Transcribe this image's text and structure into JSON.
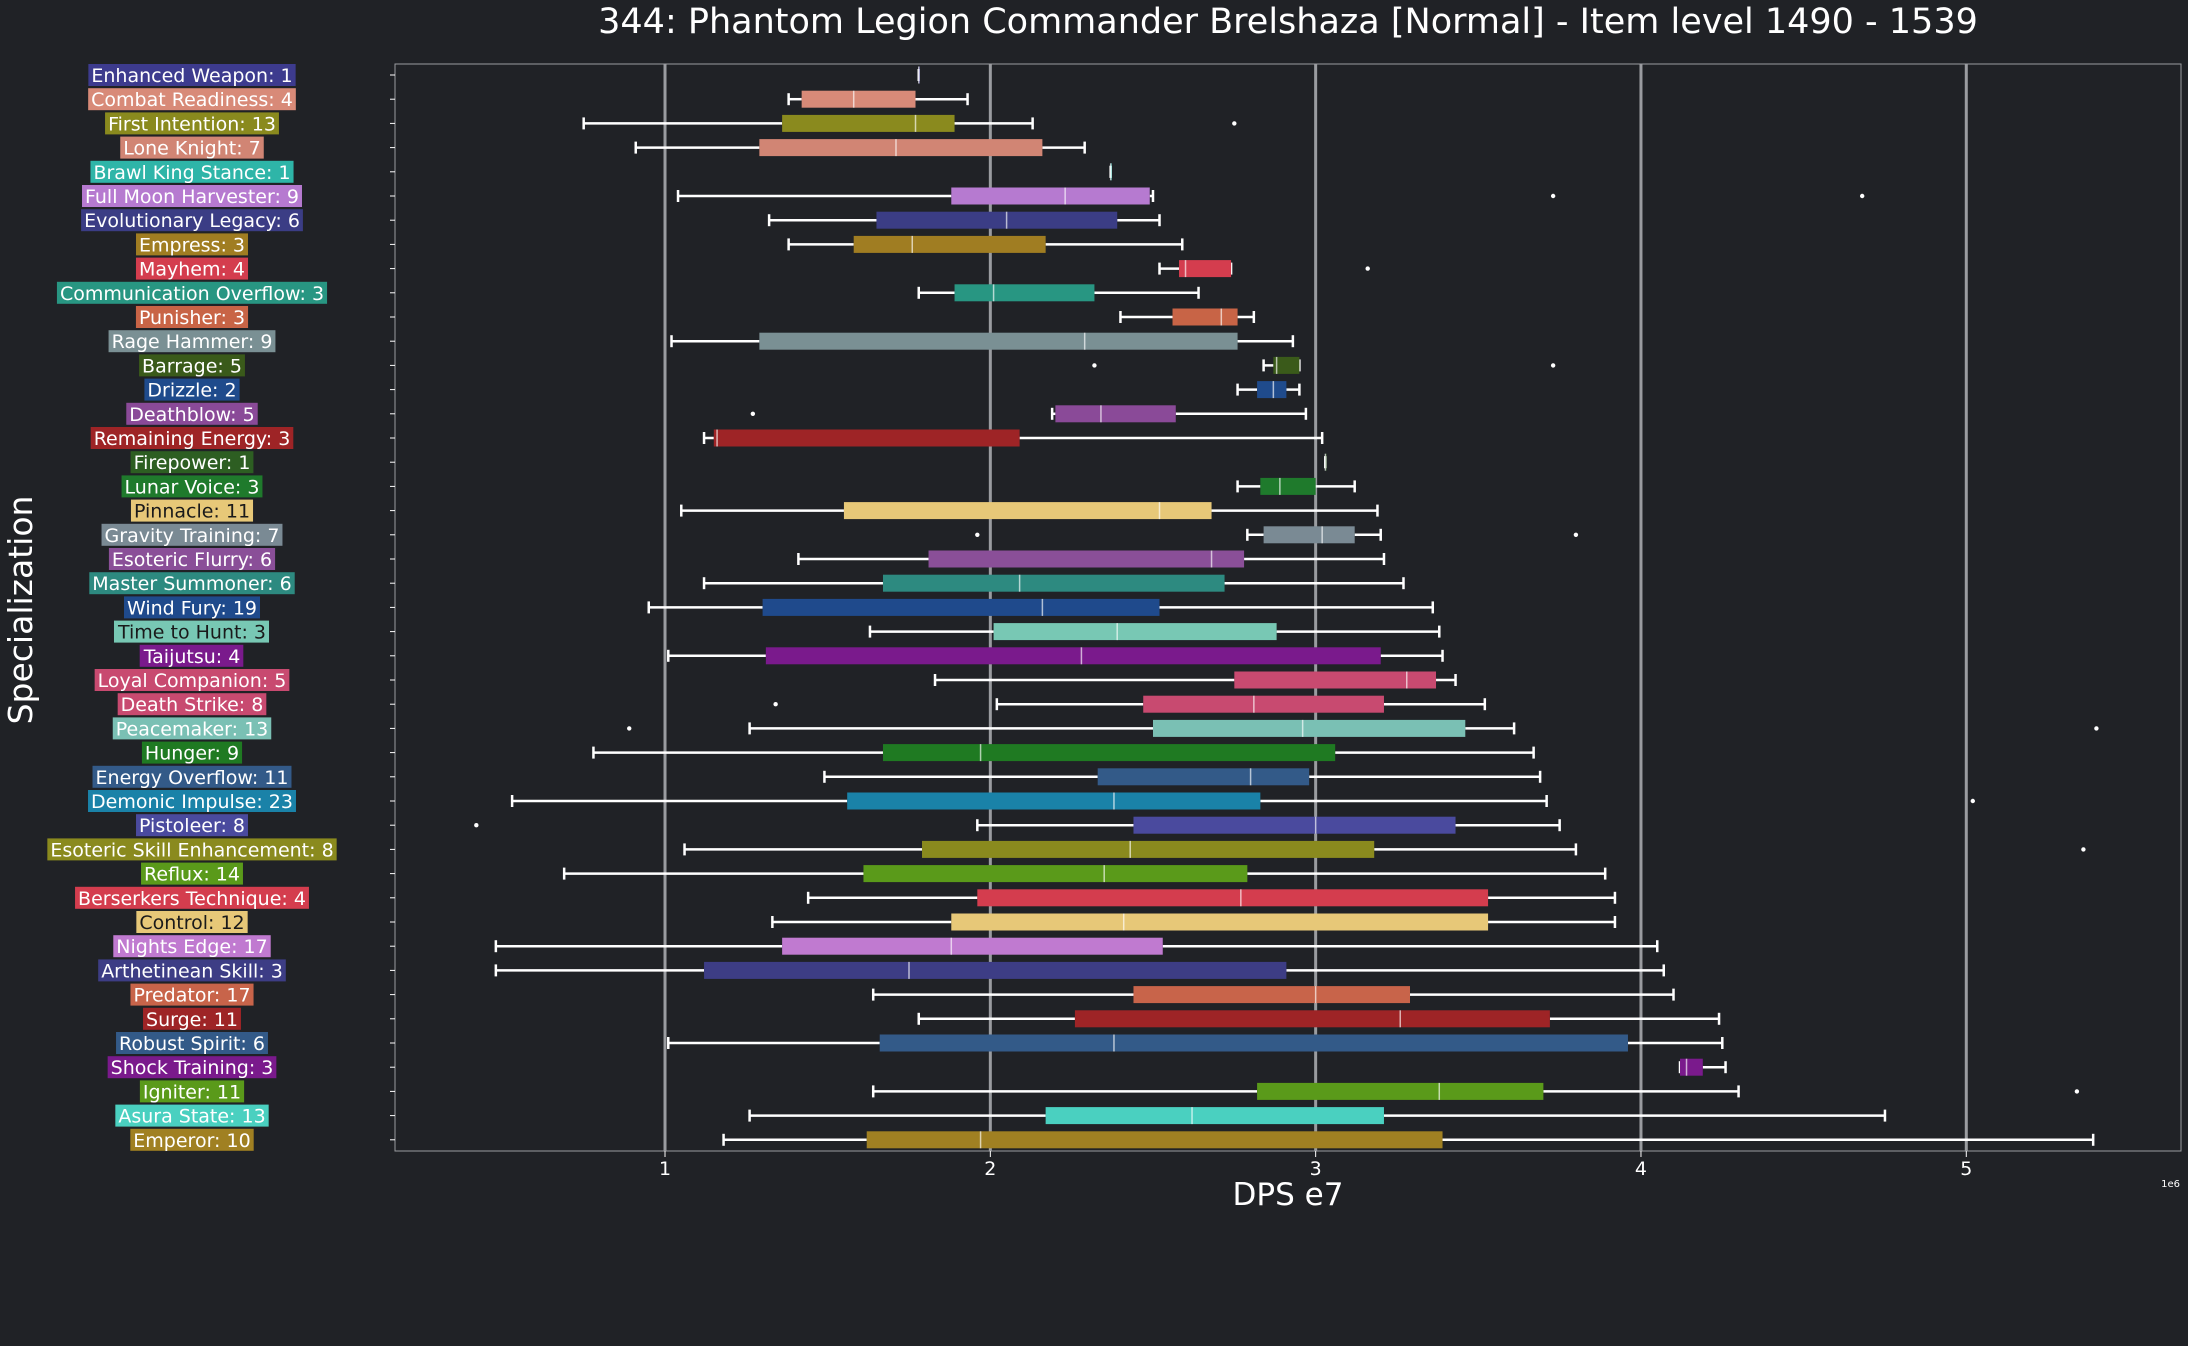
{
  "chart_data": {
    "type": "box",
    "orientation": "horizontal",
    "title": "344: Phantom Legion Commander Brelshaza [Normal] - Item level 1490 - 1539",
    "xlabel": "DPS e7",
    "ylabel": "Specialization",
    "x_offset_label": "1e6",
    "xlim": [
      1.17,
      6.66
    ],
    "xticks": [
      2,
      3,
      4,
      5,
      6
    ],
    "xtick_labels": [
      "1",
      "2",
      "3",
      "4",
      "5"
    ],
    "grid": "vertical lines at major ticks",
    "series": [
      {
        "label": "Enhanced Weapon: 1",
        "color": "#3d3b8e",
        "whislo": 2.78,
        "q1": 2.78,
        "med": 2.78,
        "q3": 2.78,
        "whishi": 2.78,
        "fliers": []
      },
      {
        "label": "Combat Readiness: 4",
        "color": "#d88a78",
        "whislo": 2.38,
        "q1": 2.42,
        "med": 2.58,
        "q3": 2.77,
        "whishi": 2.93,
        "fliers": []
      },
      {
        "label": "First Intention: 13",
        "color": "#8a8a1e",
        "whislo": 1.75,
        "q1": 2.36,
        "med": 2.77,
        "q3": 2.89,
        "whishi": 3.13,
        "fliers": [
          3.75
        ]
      },
      {
        "label": "Lone Knight: 7",
        "color": "#d18574",
        "whislo": 1.91,
        "q1": 2.29,
        "med": 2.71,
        "q3": 3.16,
        "whishi": 3.29,
        "fliers": []
      },
      {
        "label": "Brawl King Stance: 1",
        "color": "#2eb5a8",
        "whislo": 3.37,
        "q1": 3.37,
        "med": 3.37,
        "q3": 3.37,
        "whishi": 3.37,
        "fliers": []
      },
      {
        "label": "Full Moon Harvester: 9",
        "color": "#b67ad0",
        "whislo": 2.04,
        "q1": 2.88,
        "med": 3.23,
        "q3": 3.49,
        "whishi": 3.5,
        "fliers": [
          4.73,
          5.68
        ]
      },
      {
        "label": "Evolutionary Legacy: 6",
        "color": "#3b3d85",
        "whislo": 2.32,
        "q1": 2.65,
        "med": 3.05,
        "q3": 3.39,
        "whishi": 3.52,
        "fliers": []
      },
      {
        "label": "Empress: 3",
        "color": "#a07d22",
        "whislo": 2.38,
        "q1": 2.58,
        "med": 2.76,
        "q3": 3.17,
        "whishi": 3.59,
        "fliers": []
      },
      {
        "label": "Mayhem: 4",
        "color": "#d43d4e",
        "whislo": 3.52,
        "q1": 3.58,
        "med": 3.6,
        "q3": 3.74,
        "whishi": 3.74,
        "fliers": [
          4.16
        ]
      },
      {
        "label": "Communication Overflow: 3",
        "color": "#289682",
        "whislo": 2.78,
        "q1": 2.89,
        "med": 3.01,
        "q3": 3.32,
        "whishi": 3.64,
        "fliers": []
      },
      {
        "label": "Punisher: 3",
        "color": "#c86446",
        "whislo": 3.4,
        "q1": 3.56,
        "med": 3.71,
        "q3": 3.76,
        "whishi": 3.81,
        "fliers": []
      },
      {
        "label": "Rage Hammer: 9",
        "color": "#7a9094",
        "whislo": 2.02,
        "q1": 2.29,
        "med": 3.29,
        "q3": 3.76,
        "whishi": 3.93,
        "fliers": []
      },
      {
        "label": "Barrage: 5",
        "color": "#3a5a1a",
        "whislo": 3.84,
        "q1": 3.87,
        "med": 3.88,
        "q3": 3.95,
        "whishi": 3.95,
        "fliers": [
          3.32,
          4.73
        ]
      },
      {
        "label": "Drizzle: 2",
        "color": "#1f4b8c",
        "whislo": 3.76,
        "q1": 3.82,
        "med": 3.87,
        "q3": 3.91,
        "whishi": 3.95,
        "fliers": []
      },
      {
        "label": "Deathblow: 5",
        "color": "#8a4a98",
        "whislo": 3.19,
        "q1": 3.2,
        "med": 3.34,
        "q3": 3.57,
        "whishi": 3.97,
        "fliers": [
          2.27
        ]
      },
      {
        "label": "Remaining Energy: 3",
        "color": "#9e2426",
        "whislo": 2.12,
        "q1": 2.15,
        "med": 2.16,
        "q3": 3.09,
        "whishi": 4.02,
        "fliers": []
      },
      {
        "label": "Firepower: 1",
        "color": "#2d5e22",
        "whislo": 4.03,
        "q1": 4.03,
        "med": 4.03,
        "q3": 4.03,
        "whishi": 4.03,
        "fliers": []
      },
      {
        "label": "Lunar Voice: 3",
        "color": "#1f7a2c",
        "whislo": 3.76,
        "q1": 3.83,
        "med": 3.89,
        "q3": 4.0,
        "whishi": 4.12,
        "fliers": []
      },
      {
        "label": "Pinnacle: 11",
        "color": "#e7c878",
        "whislo": 2.05,
        "q1": 2.55,
        "med": 3.52,
        "q3": 3.68,
        "whishi": 4.19,
        "fliers": []
      },
      {
        "label": "Gravity Training: 7",
        "color": "#7a8a94",
        "whislo": 3.79,
        "q1": 3.84,
        "med": 4.02,
        "q3": 4.12,
        "whishi": 4.2,
        "fliers": [
          2.96,
          4.8
        ]
      },
      {
        "label": "Esoteric Flurry: 6",
        "color": "#8a4f98",
        "whislo": 2.41,
        "q1": 2.81,
        "med": 3.68,
        "q3": 3.78,
        "whishi": 4.21,
        "fliers": []
      },
      {
        "label": "Master Summoner: 6",
        "color": "#2d8a80",
        "whislo": 2.12,
        "q1": 2.67,
        "med": 3.09,
        "q3": 3.72,
        "whishi": 4.27,
        "fliers": []
      },
      {
        "label": "Wind Fury: 19",
        "color": "#1f4a8c",
        "whislo": 1.95,
        "q1": 2.3,
        "med": 3.16,
        "q3": 3.52,
        "whishi": 4.36,
        "fliers": []
      },
      {
        "label": "Time to Hunt: 3",
        "color": "#78c8b4",
        "whislo": 2.63,
        "q1": 3.01,
        "med": 3.39,
        "q3": 3.88,
        "whishi": 4.38,
        "fliers": []
      },
      {
        "label": "Taijutsu: 4",
        "color": "#7a1a8c",
        "whislo": 2.01,
        "q1": 2.31,
        "med": 3.28,
        "q3": 4.2,
        "whishi": 4.39,
        "fliers": []
      },
      {
        "label": "Loyal Companion: 5",
        "color": "#c84a70",
        "whislo": 2.83,
        "q1": 3.75,
        "med": 4.28,
        "q3": 4.37,
        "whishi": 4.43,
        "fliers": []
      },
      {
        "label": "Death Strike: 8",
        "color": "#c84a70",
        "whislo": 3.02,
        "q1": 3.47,
        "med": 3.81,
        "q3": 4.21,
        "whishi": 4.52,
        "fliers": [
          2.34
        ]
      },
      {
        "label": "Peacemaker: 13",
        "color": "#7ac0b4",
        "whislo": 2.26,
        "q1": 3.5,
        "med": 3.96,
        "q3": 4.46,
        "whishi": 4.61,
        "fliers": [
          1.89,
          6.4
        ]
      },
      {
        "label": "Hunger: 9",
        "color": "#1f7a22",
        "whislo": 1.78,
        "q1": 2.67,
        "med": 2.97,
        "q3": 4.06,
        "whishi": 4.67,
        "fliers": []
      },
      {
        "label": "Energy Overflow: 11",
        "color": "#335a88",
        "whislo": 2.49,
        "q1": 3.33,
        "med": 3.8,
        "q3": 3.98,
        "whishi": 4.69,
        "fliers": []
      },
      {
        "label": "Demonic Impulse: 23",
        "color": "#1a82a8",
        "whislo": 1.53,
        "q1": 2.56,
        "med": 3.38,
        "q3": 3.83,
        "whishi": 4.71,
        "fliers": [
          6.02
        ]
      },
      {
        "label": "Pistoleer: 8",
        "color": "#4a4a9e",
        "whislo": 2.96,
        "q1": 3.44,
        "med": 4.0,
        "q3": 4.43,
        "whishi": 4.75,
        "fliers": [
          1.42
        ]
      },
      {
        "label": "Esoteric Skill Enhancement: 8",
        "color": "#8a8a1e",
        "whislo": 2.06,
        "q1": 2.79,
        "med": 3.43,
        "q3": 4.18,
        "whishi": 4.8,
        "fliers": [
          6.36
        ]
      },
      {
        "label": "Reflux: 14",
        "color": "#5a9a1a",
        "whislo": 1.69,
        "q1": 2.61,
        "med": 3.35,
        "q3": 3.79,
        "whishi": 4.89,
        "fliers": []
      },
      {
        "label": "Berserkers Technique: 4",
        "color": "#d43d4e",
        "whislo": 2.44,
        "q1": 2.96,
        "med": 3.77,
        "q3": 4.53,
        "whishi": 4.92,
        "fliers": []
      },
      {
        "label": "Control: 12",
        "color": "#e7c878",
        "whislo": 2.33,
        "q1": 2.88,
        "med": 3.41,
        "q3": 4.53,
        "whishi": 4.92,
        "fliers": []
      },
      {
        "label": "Nights Edge: 17",
        "color": "#c07ad0",
        "whislo": 1.48,
        "q1": 2.36,
        "med": 2.88,
        "q3": 3.53,
        "whishi": 5.05,
        "fliers": []
      },
      {
        "label": "Arthetinean Skill: 3",
        "color": "#3d3d85",
        "whislo": 1.48,
        "q1": 2.12,
        "med": 2.75,
        "q3": 3.91,
        "whishi": 5.07,
        "fliers": []
      },
      {
        "label": "Predator: 17",
        "color": "#c8644a",
        "whislo": 2.64,
        "q1": 3.44,
        "med": 4.0,
        "q3": 4.29,
        "whishi": 5.1,
        "fliers": []
      },
      {
        "label": "Surge: 11",
        "color": "#9e2426",
        "whislo": 2.78,
        "q1": 3.26,
        "med": 4.26,
        "q3": 4.72,
        "whishi": 5.24,
        "fliers": []
      },
      {
        "label": "Robust Spirit: 6",
        "color": "#335a88",
        "whislo": 2.01,
        "q1": 2.66,
        "med": 3.38,
        "q3": 4.96,
        "whishi": 5.25,
        "fliers": []
      },
      {
        "label": "Shock Training: 3",
        "color": "#7a1a8c",
        "whislo": 5.12,
        "q1": 5.12,
        "med": 5.14,
        "q3": 5.19,
        "whishi": 5.26,
        "fliers": []
      },
      {
        "label": "Igniter: 11",
        "color": "#5a9a1a",
        "whislo": 2.64,
        "q1": 3.82,
        "med": 4.38,
        "q3": 4.7,
        "whishi": 5.3,
        "fliers": [
          6.34
        ]
      },
      {
        "label": "Asura State: 13",
        "color": "#4ad0c0",
        "whislo": 2.26,
        "q1": 3.17,
        "med": 3.62,
        "q3": 4.21,
        "whishi": 5.75,
        "fliers": []
      },
      {
        "label": "Emperor: 10",
        "color": "#a08022",
        "whislo": 2.18,
        "q1": 2.62,
        "med": 2.97,
        "q3": 4.39,
        "whishi": 6.39,
        "fliers": []
      }
    ]
  }
}
